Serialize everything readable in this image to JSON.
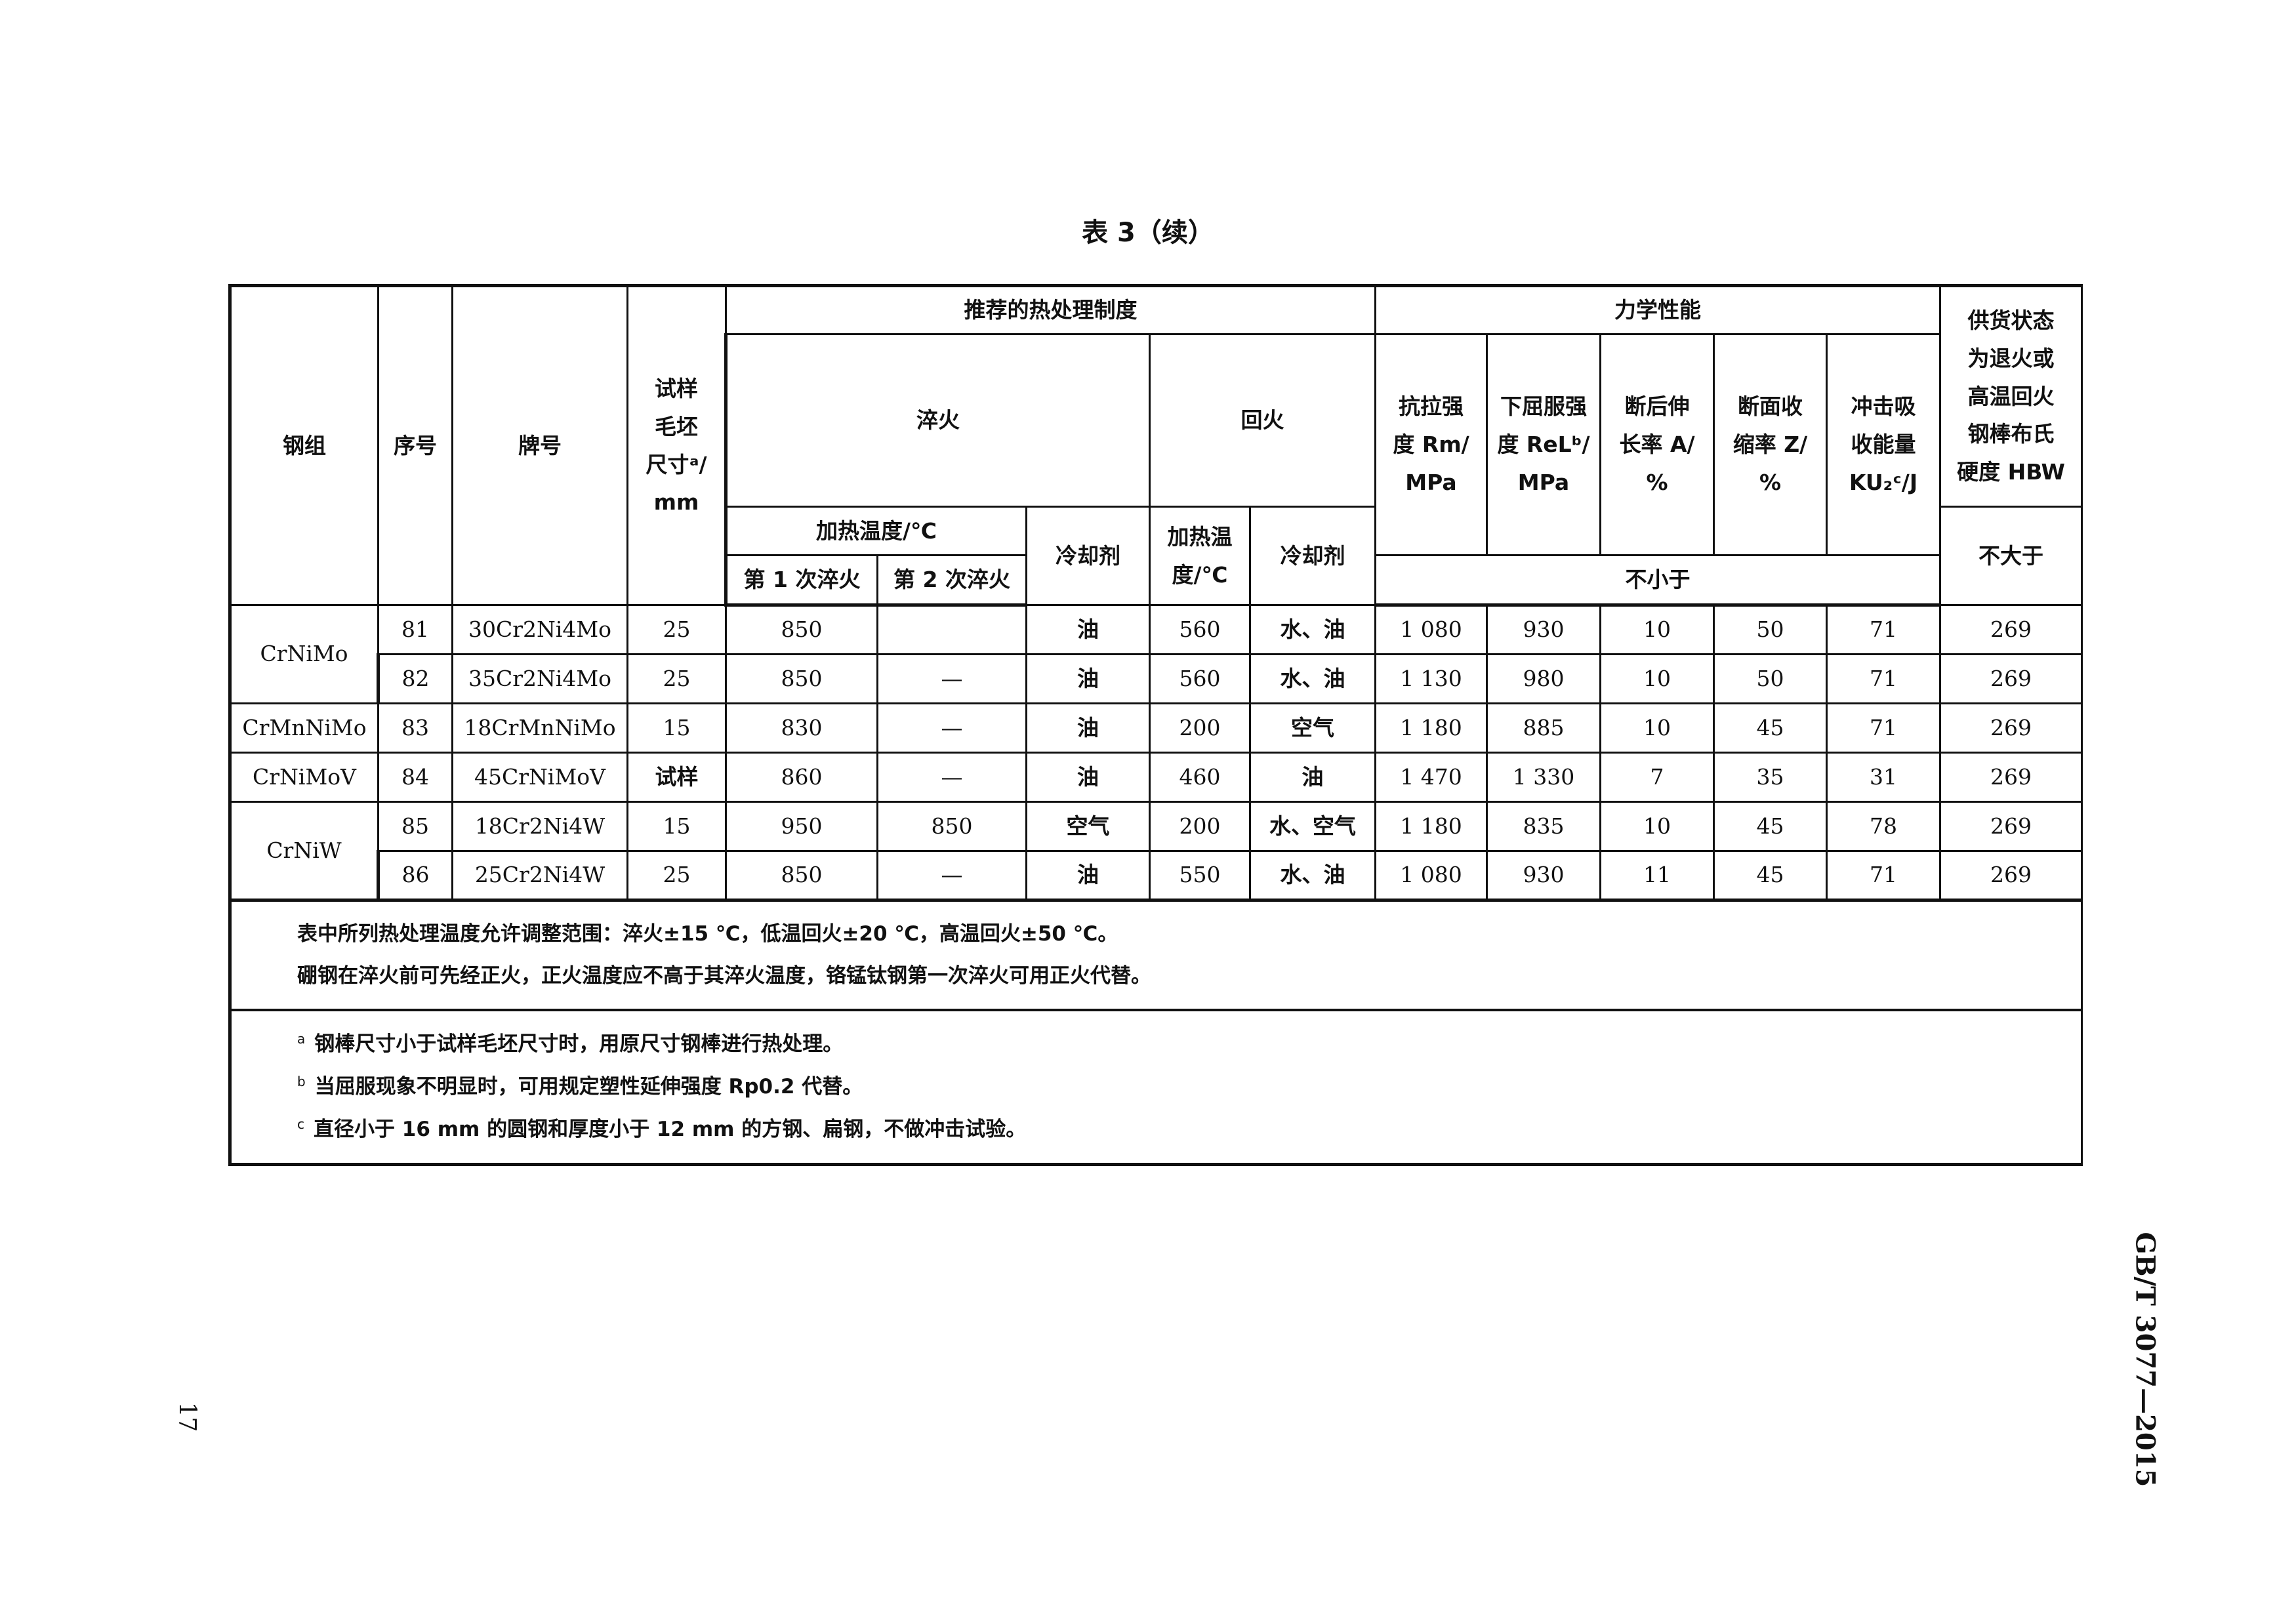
{
  "title": "表 3（续）",
  "header": {
    "steel_group": "钢组",
    "serial": "序号",
    "grade": "牌号",
    "blank_size": [
      "试样",
      "毛坯",
      "尺寸ᵃ/",
      "mm"
    ],
    "heat_treatment": "推荐的热处理制度",
    "quench": "淬火",
    "temper": "回火",
    "heating_temp": "加热温度/℃",
    "first_quench": "第 1 次淬火",
    "second_quench": "第 2 次淬火",
    "coolant": "冷却剂",
    "temper_heating": [
      "加热温",
      "度/℃"
    ],
    "mechanical": "力学性能",
    "rm": [
      "抗拉强",
      "度 Rm/",
      "MPa"
    ],
    "rel": [
      "下屈服强",
      "度 ReLᵇ/",
      "MPa"
    ],
    "a": [
      "断后伸",
      "长率 A/",
      "%"
    ],
    "z": [
      "断面收",
      "缩率 Z/",
      "%"
    ],
    "ku": [
      "冲击吸",
      "收能量",
      "KU₂ᶜ/J"
    ],
    "hbw": [
      "供货状态",
      "为退火或",
      "高温回火",
      "钢棒布氏",
      "硬度 HBW"
    ],
    "not_less": "不小于",
    "not_more": "不大于"
  },
  "groups": [
    {
      "name": "CrNiMo",
      "rows": [
        [
          "81",
          "30Cr2Ni4Mo",
          "25",
          "850",
          "",
          "油",
          "560",
          "水、油",
          "1 080",
          "930",
          "10",
          "50",
          "71",
          "269"
        ],
        [
          "82",
          "35Cr2Ni4Mo",
          "25",
          "850",
          "—",
          "油",
          "560",
          "水、油",
          "1 130",
          "980",
          "10",
          "50",
          "71",
          "269"
        ]
      ]
    },
    {
      "name": "CrMnNiMo",
      "rows": [
        [
          "83",
          "18CrMnNiMo",
          "15",
          "830",
          "—",
          "油",
          "200",
          "空气",
          "1 180",
          "885",
          "10",
          "45",
          "71",
          "269"
        ]
      ]
    },
    {
      "name": "CrNiMoV",
      "rows": [
        [
          "84",
          "45CrNiMoV",
          "试样",
          "860",
          "—",
          "油",
          "460",
          "油",
          "1 470",
          "1 330",
          "7",
          "35",
          "31",
          "269"
        ]
      ]
    },
    {
      "name": "CrNiW",
      "rows": [
        [
          "85",
          "18Cr2Ni4W",
          "15",
          "950",
          "850",
          "空气",
          "200",
          "水、空气",
          "1 180",
          "835",
          "10",
          "45",
          "78",
          "269"
        ],
        [
          "86",
          "25Cr2Ni4W",
          "25",
          "850",
          "—",
          "油",
          "550",
          "水、油",
          "1 080",
          "930",
          "11",
          "45",
          "71",
          "269"
        ]
      ]
    }
  ],
  "notes": [
    "表中所列热处理温度允许调整范围：淬火±15 ℃，低温回火±20 ℃，高温回火±50 ℃。",
    "硼钢在淬火前可先经正火，正火温度应不高于其淬火温度，铬锰钛钢第一次淬火可用正火代替。"
  ],
  "footnotes": [
    {
      "mark": "a",
      "text": "钢棒尺寸小于试样毛坯尺寸时，用原尺寸钢棒进行热处理。"
    },
    {
      "mark": "b",
      "text": "当屈服现象不明显时，可用规定塑性延伸强度 Rp0.2 代替。"
    },
    {
      "mark": "c",
      "text": "直径小于 16 mm 的圆钢和厚度小于 12 mm 的方钢、扁钢，不做冲击试验。"
    }
  ],
  "page_number": "17",
  "standard_code": "GB/T 3077—2015"
}
